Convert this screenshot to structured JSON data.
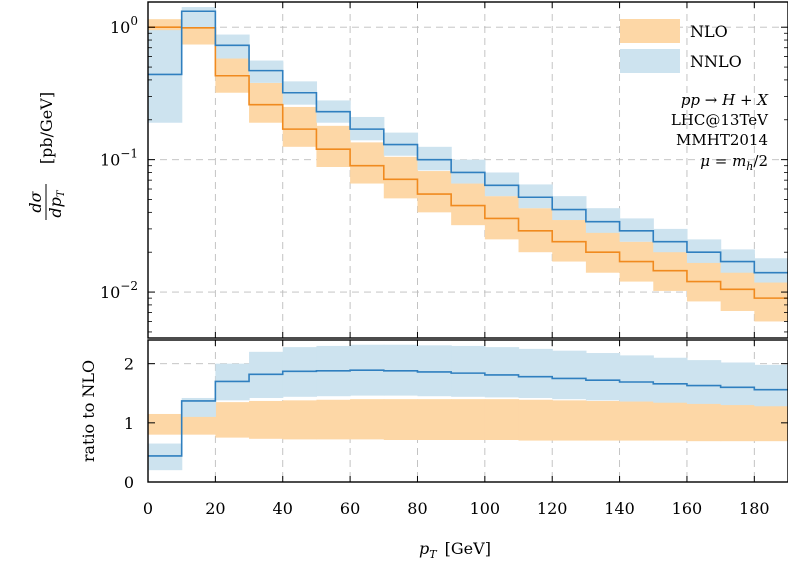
{
  "chart_data": {
    "type": "step-histogram",
    "legend": {
      "placement": "top-right",
      "entries": [
        {
          "label": "NLO",
          "color": "#fdd7a6"
        },
        {
          "label": "NNLO",
          "color": "#cde3ef"
        }
      ]
    },
    "annotations": [
      "pp → H + X",
      "LHC@13TeV",
      "MMHT2014",
      "μ = m",
      "h",
      "/2"
    ],
    "colors": {
      "nlo_line": "#f08a1f",
      "nlo_band": "#fdd7a6",
      "nnlo_line": "#2f7fbf",
      "nnlo_band": "#cde3ef"
    },
    "x_axis": {
      "label": "p",
      "label_sub": "T",
      "label_unit": "[GeV]",
      "range": [
        0,
        190
      ],
      "ticks": [
        "0",
        "20",
        "40",
        "60",
        "80",
        "100",
        "120",
        "140",
        "160",
        "180"
      ],
      "tick_values": [
        0,
        20,
        40,
        60,
        80,
        100,
        120,
        140,
        160,
        180
      ]
    },
    "bin_edges": [
      0,
      10,
      20,
      30,
      40,
      50,
      60,
      70,
      80,
      90,
      100,
      110,
      120,
      130,
      140,
      150,
      160,
      170,
      180,
      190
    ],
    "top_panel": {
      "y_label": "dσ",
      "y_label_den": "dp",
      "y_label_sub": "T",
      "y_unit": "[pb/GeV]",
      "scale": "log",
      "ylim": [
        0.0045,
        1.55
      ],
      "ticks": [
        {
          "value": 1,
          "base": "10",
          "exp": "0"
        },
        {
          "value": 0.1,
          "base": "10",
          "exp": "−1"
        },
        {
          "value": 0.01,
          "base": "10",
          "exp": "−2"
        }
      ],
      "grid": true,
      "nlo": {
        "central": [
          1.0,
          0.99,
          0.43,
          0.26,
          0.17,
          0.12,
          0.09,
          0.071,
          0.055,
          0.045,
          0.036,
          0.029,
          0.024,
          0.02,
          0.017,
          0.0145,
          0.012,
          0.0105,
          0.009
        ],
        "low": [
          0.75,
          0.74,
          0.32,
          0.19,
          0.125,
          0.088,
          0.066,
          0.051,
          0.04,
          0.032,
          0.025,
          0.02,
          0.017,
          0.014,
          0.012,
          0.0102,
          0.0085,
          0.0072,
          0.006
        ],
        "high": [
          1.15,
          1.1,
          0.62,
          0.38,
          0.25,
          0.18,
          0.135,
          0.105,
          0.082,
          0.066,
          0.053,
          0.043,
          0.035,
          0.029,
          0.024,
          0.021,
          0.018,
          0.015,
          0.013
        ]
      },
      "nnlo": {
        "central": [
          0.44,
          1.32,
          0.73,
          0.47,
          0.32,
          0.23,
          0.17,
          0.13,
          0.1,
          0.08,
          0.064,
          0.052,
          0.042,
          0.034,
          0.029,
          0.024,
          0.02,
          0.017,
          0.014
        ],
        "low": [
          0.19,
          1.0,
          0.58,
          0.38,
          0.26,
          0.19,
          0.14,
          0.107,
          0.083,
          0.066,
          0.053,
          0.043,
          0.035,
          0.028,
          0.024,
          0.02,
          0.0166,
          0.014,
          0.0118
        ],
        "high": [
          0.95,
          1.42,
          0.88,
          0.56,
          0.39,
          0.28,
          0.21,
          0.16,
          0.125,
          0.1,
          0.08,
          0.065,
          0.053,
          0.043,
          0.036,
          0.03,
          0.025,
          0.021,
          0.018
        ]
      }
    },
    "bottom_panel": {
      "y_label": "ratio to NLO",
      "scale": "linear",
      "ylim": [
        0,
        2.4
      ],
      "ticks": [
        "0",
        "1",
        "2"
      ],
      "tick_values": [
        0,
        1,
        2
      ],
      "grid": true,
      "nlo_band": {
        "low": [
          0.8,
          0.8,
          0.75,
          0.73,
          0.72,
          0.72,
          0.72,
          0.71,
          0.71,
          0.71,
          0.71,
          0.7,
          0.7,
          0.7,
          0.7,
          0.7,
          0.69,
          0.69,
          0.69
        ],
        "high": [
          1.15,
          1.15,
          1.35,
          1.37,
          1.38,
          1.39,
          1.4,
          1.4,
          1.4,
          1.4,
          1.4,
          1.39,
          1.38,
          1.37,
          1.36,
          1.35,
          1.33,
          1.31,
          1.3
        ]
      },
      "nnlo": {
        "central": [
          0.44,
          1.37,
          1.7,
          1.82,
          1.87,
          1.88,
          1.89,
          1.88,
          1.86,
          1.84,
          1.81,
          1.78,
          1.75,
          1.72,
          1.69,
          1.66,
          1.63,
          1.6,
          1.56
        ],
        "low": [
          0.2,
          1.1,
          1.38,
          1.42,
          1.44,
          1.45,
          1.46,
          1.46,
          1.45,
          1.44,
          1.43,
          1.42,
          1.4,
          1.38,
          1.36,
          1.34,
          1.32,
          1.3,
          1.28
        ],
        "high": [
          0.65,
          1.42,
          2.0,
          2.2,
          2.28,
          2.3,
          2.32,
          2.32,
          2.31,
          2.3,
          2.28,
          2.25,
          2.22,
          2.18,
          2.14,
          2.1,
          2.06,
          2.02,
          1.98
        ]
      }
    }
  }
}
